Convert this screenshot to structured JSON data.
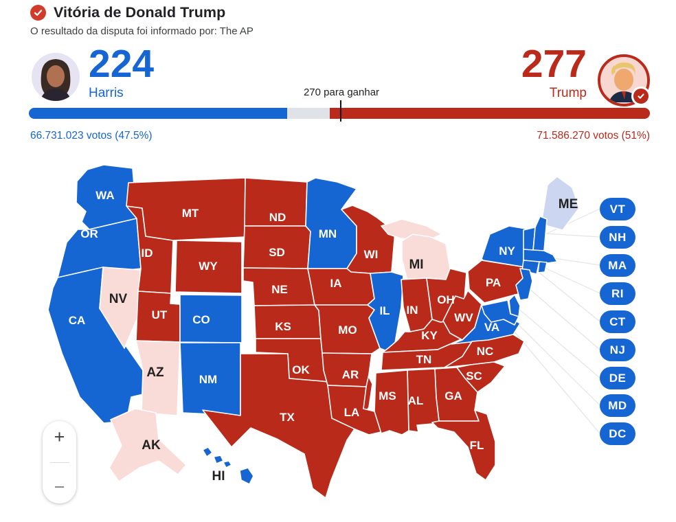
{
  "header": {
    "title": "Vitória de Donald Trump",
    "subtitle": "O resultado da disputa foi informado por: The AP",
    "winner_check_icon": "check-circle-icon"
  },
  "scoreboard": {
    "threshold_label": "270 para ganhar",
    "harris": {
      "name": "Harris",
      "electoral_votes": "224",
      "votes": "66.731.023 votos (47.5%)"
    },
    "trump": {
      "name": "Trump",
      "electoral_votes": "277",
      "votes": "71.586.270 votos (51%)"
    }
  },
  "bar": {
    "harris_pct": 41.6,
    "trump_pct": 51.5,
    "undecided_pct": 6.9,
    "marker_pct": 50.2
  },
  "controls": {
    "zoom_in": "+",
    "zoom_out": "−"
  },
  "colors": {
    "democrat": "#1565d2",
    "republican": "#b92a1b",
    "lean_republican": "#f9dcd8",
    "lean_democrat": "#ccd6f0",
    "undecided": "#dfe2e6",
    "badge_red": "#d23b2a",
    "text_dark": "#202124",
    "text_gray": "#3c4043",
    "line": "#e4e4e4"
  },
  "map": {
    "pill_states": [
      "VT",
      "NH",
      "MA",
      "RI",
      "CT",
      "NJ",
      "DE",
      "MD",
      "DC"
    ],
    "states": {
      "WA": {
        "label": "WA",
        "party": "democrat"
      },
      "OR": {
        "label": "OR",
        "party": "democrat"
      },
      "CA": {
        "label": "CA",
        "party": "democrat"
      },
      "NV": {
        "label": "NV",
        "party": "lean_republican",
        "label_dark": true
      },
      "ID": {
        "label": "ID",
        "party": "republican"
      },
      "MT": {
        "label": "MT",
        "party": "republican"
      },
      "WY": {
        "label": "WY",
        "party": "republican"
      },
      "UT": {
        "label": "UT",
        "party": "republican"
      },
      "CO": {
        "label": "CO",
        "party": "democrat"
      },
      "AZ": {
        "label": "AZ",
        "party": "lean_republican",
        "label_dark": true
      },
      "NM": {
        "label": "NM",
        "party": "democrat"
      },
      "ND": {
        "label": "ND",
        "party": "republican"
      },
      "SD": {
        "label": "SD",
        "party": "republican"
      },
      "NE": {
        "label": "NE",
        "party": "republican"
      },
      "KS": {
        "label": "KS",
        "party": "republican"
      },
      "OK": {
        "label": "OK",
        "party": "republican"
      },
      "TX": {
        "label": "TX",
        "party": "republican"
      },
      "MN": {
        "label": "MN",
        "party": "democrat"
      },
      "IA": {
        "label": "IA",
        "party": "republican"
      },
      "MO": {
        "label": "MO",
        "party": "republican"
      },
      "AR": {
        "label": "AR",
        "party": "republican"
      },
      "LA": {
        "label": "LA",
        "party": "republican"
      },
      "WI": {
        "label": "WI",
        "party": "republican"
      },
      "IL": {
        "label": "IL",
        "party": "democrat"
      },
      "MI": {
        "label": "MI",
        "party": "lean_republican",
        "label_dark": true
      },
      "IN": {
        "label": "IN",
        "party": "republican"
      },
      "OH": {
        "label": "OH",
        "party": "republican"
      },
      "KY": {
        "label": "KY",
        "party": "republican"
      },
      "TN": {
        "label": "TN",
        "party": "republican"
      },
      "MS": {
        "label": "MS",
        "party": "republican"
      },
      "AL": {
        "label": "AL",
        "party": "republican"
      },
      "GA": {
        "label": "GA",
        "party": "republican"
      },
      "SC": {
        "label": "SC",
        "party": "republican"
      },
      "NC": {
        "label": "NC",
        "party": "republican"
      },
      "VA": {
        "label": "VA",
        "party": "democrat"
      },
      "WV": {
        "label": "WV",
        "party": "republican"
      },
      "PA": {
        "label": "PA",
        "party": "republican"
      },
      "NY": {
        "label": "NY",
        "party": "democrat"
      },
      "ME": {
        "label": "ME",
        "party": "lean_democrat",
        "label_dark": true
      },
      "VT": {
        "label": "VT",
        "party": "democrat"
      },
      "NH": {
        "label": "NH",
        "party": "democrat"
      },
      "MA": {
        "label": "MA",
        "party": "democrat"
      },
      "CT": {
        "label": "CT",
        "party": "democrat"
      },
      "RI": {
        "label": "RI",
        "party": "democrat"
      },
      "NJ": {
        "label": "NJ",
        "party": "democrat"
      },
      "DE": {
        "label": "DE",
        "party": "democrat"
      },
      "MD": {
        "label": "MD",
        "party": "democrat"
      },
      "FL": {
        "label": "FL",
        "party": "republican"
      },
      "AK": {
        "label": "AK",
        "party": "lean_republican",
        "label_dark": true
      },
      "HI": {
        "label": "HI",
        "party": "democrat",
        "label_dark": true
      }
    }
  }
}
